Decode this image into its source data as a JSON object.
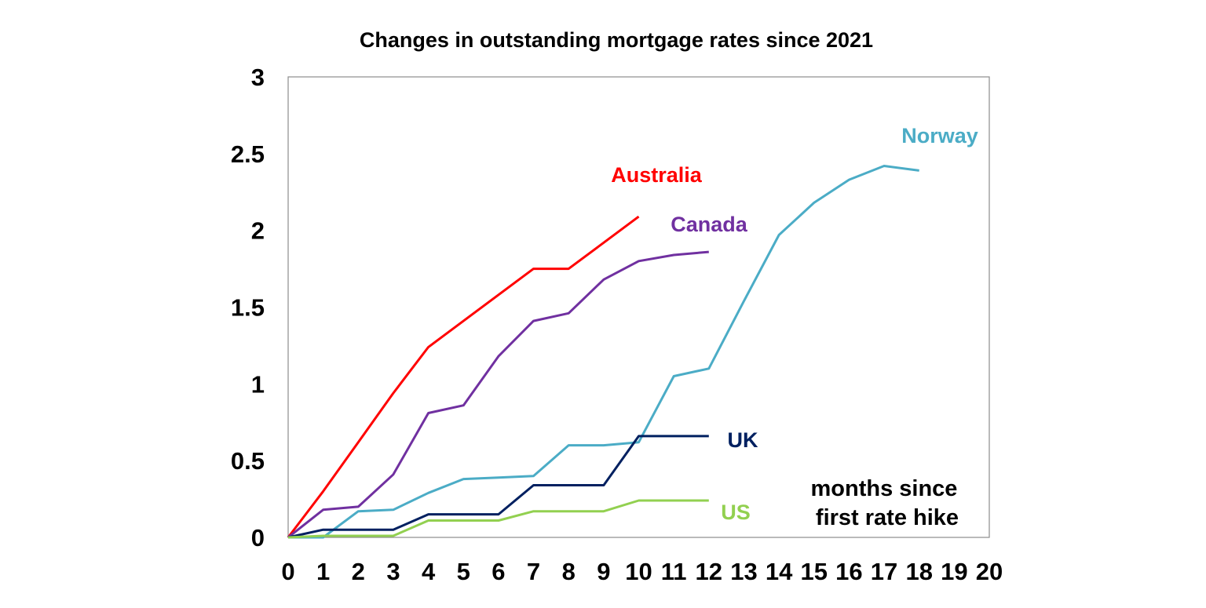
{
  "chart_data": {
    "type": "line",
    "title": "Changes in outstanding mortgage rates since 2021",
    "xlabel": "",
    "ylabel": "",
    "xlim": [
      0,
      20
    ],
    "ylim": [
      0,
      3
    ],
    "x_ticks": [
      "0",
      "1",
      "2",
      "3",
      "4",
      "5",
      "6",
      "7",
      "8",
      "9",
      "10",
      "11",
      "12",
      "13",
      "14",
      "15",
      "16",
      "17",
      "18",
      "19",
      "20"
    ],
    "y_ticks": [
      "0",
      "0.5",
      "1",
      "1.5",
      "2",
      "2.5",
      "3"
    ],
    "grid": false,
    "annotation": [
      "months since",
      "first rate hike"
    ],
    "series": [
      {
        "name": "Australia",
        "color": "#ff0000",
        "x": [
          0,
          1,
          2,
          3,
          4,
          5,
          6,
          7,
          8,
          9,
          10
        ],
        "values": [
          0,
          0.3,
          0.62,
          0.94,
          1.24,
          1.41,
          1.58,
          1.75,
          1.75,
          1.92,
          2.09
        ]
      },
      {
        "name": "Canada",
        "color": "#7030a0",
        "x": [
          0,
          1,
          2,
          3,
          4,
          5,
          6,
          7,
          8,
          9,
          10,
          11,
          12
        ],
        "values": [
          0,
          0.18,
          0.2,
          0.41,
          0.81,
          0.86,
          1.18,
          1.41,
          1.46,
          1.68,
          1.8,
          1.84,
          1.86
        ]
      },
      {
        "name": "Norway",
        "color": "#4bacc6",
        "x": [
          0,
          1,
          2,
          3,
          4,
          5,
          6,
          7,
          8,
          9,
          10,
          11,
          12,
          13,
          14,
          15,
          16,
          17,
          18
        ],
        "values": [
          0,
          0,
          0.17,
          0.18,
          0.29,
          0.38,
          0.39,
          0.4,
          0.6,
          0.6,
          0.62,
          1.05,
          1.1,
          1.54,
          1.97,
          2.18,
          2.33,
          2.42,
          2.39
        ]
      },
      {
        "name": "UK",
        "color": "#002060",
        "x": [
          0,
          1,
          2,
          3,
          4,
          5,
          6,
          7,
          8,
          9,
          10,
          11,
          12
        ],
        "values": [
          0,
          0.05,
          0.05,
          0.05,
          0.15,
          0.15,
          0.15,
          0.34,
          0.34,
          0.34,
          0.66,
          0.66,
          0.66
        ]
      },
      {
        "name": "US",
        "color": "#92d050",
        "x": [
          0,
          1,
          2,
          3,
          4,
          5,
          6,
          7,
          8,
          9,
          10,
          11,
          12
        ],
        "values": [
          0,
          0.01,
          0.01,
          0.01,
          0.11,
          0.11,
          0.11,
          0.17,
          0.17,
          0.17,
          0.24,
          0.24,
          0.24
        ]
      }
    ]
  }
}
